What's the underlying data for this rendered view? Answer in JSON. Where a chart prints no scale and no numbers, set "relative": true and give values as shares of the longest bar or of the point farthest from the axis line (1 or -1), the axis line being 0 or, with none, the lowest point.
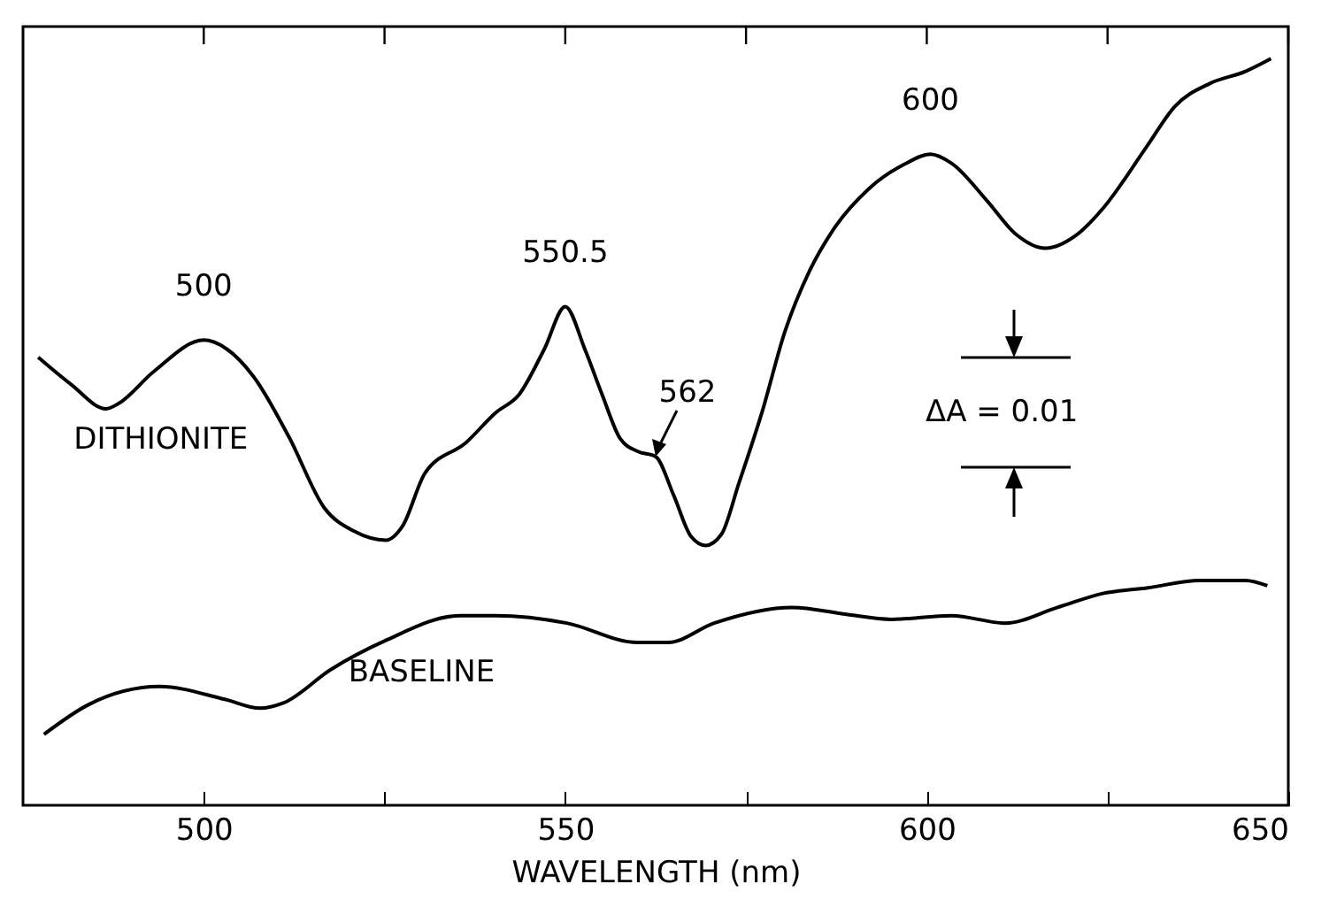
{
  "chart_data": {
    "type": "line",
    "xlabel": "WAVELENGTH (nm)",
    "relative": true,
    "line_style": "solid",
    "xlim": [
      475,
      650
    ],
    "xticks": [
      500,
      {
        "value": 525,
        "label": null
      },
      550,
      {
        "value": 575,
        "label": null
      },
      600,
      {
        "value": 625,
        "label": null
      },
      650
    ],
    "series": [
      {
        "name": "DITHIONITE",
        "color": "#000000",
        "x": [
          477.1,
          481.6,
          486.5,
          488.2,
          493.1,
          500.0,
          503.2,
          506.9,
          511.8,
          516.7,
          520.8,
          525.2,
          527.5,
          530.6,
          536.3,
          540.4,
          543.6,
          547.1,
          550.0,
          552.7,
          555.1,
          557.6,
          560.0,
          562.5,
          565.0,
          567.4,
          569.4,
          571.6,
          574.0,
          577.2,
          580.4,
          583.8,
          587.0,
          591.9,
          596.8,
          600.5,
          603.4,
          608.3,
          612.3,
          616.4,
          620.6,
          624.5,
          630.4,
          634.3,
          639.2,
          644.1,
          647.6
        ],
        "values": [
          0.6,
          0.564,
          0.531,
          0.538,
          0.581,
          0.623,
          0.611,
          0.574,
          0.493,
          0.398,
          0.367,
          0.355,
          0.374,
          0.445,
          0.486,
          0.526,
          0.55,
          0.611,
          0.668,
          0.611,
          0.55,
          0.491,
          0.474,
          0.467,
          0.415,
          0.36,
          0.348,
          0.363,
          0.431,
          0.526,
          0.635,
          0.716,
          0.77,
          0.825,
          0.858,
          0.872,
          0.86,
          0.81,
          0.765,
          0.746,
          0.763,
          0.801,
          0.882,
          0.936,
          0.967,
          0.983,
          1.0
        ]
      },
      {
        "name": "BASELINE",
        "color": "#000000",
        "x": [
          477.9,
          484.1,
          493.9,
          502.9,
          507.8,
          511.0,
          517.6,
          525.0,
          535.5,
          540.4,
          550.2,
          560.0,
          564.2,
          570.6,
          581.4,
          588.7,
          595.1,
          603.4,
          610.8,
          618.1,
          624.5,
          630.4,
          637.7,
          644.1,
          647.1
        ],
        "values": [
          0.095,
          0.135,
          0.159,
          0.142,
          0.13,
          0.137,
          0.182,
          0.22,
          0.254,
          0.254,
          0.244,
          0.218,
          0.218,
          0.244,
          0.265,
          0.256,
          0.249,
          0.254,
          0.244,
          0.265,
          0.284,
          0.291,
          0.301,
          0.301,
          0.294
        ]
      }
    ],
    "annotations": [
      {
        "text": "500",
        "x": 500.0,
        "y": 0.623
      },
      {
        "text": "550.5",
        "x": 550.0,
        "y": 0.668
      },
      {
        "text": "562",
        "x": 562.5,
        "y": 0.467
      },
      {
        "text": "600",
        "x": 600.5,
        "y": 0.872
      },
      "ΔA = 0.01"
    ]
  }
}
